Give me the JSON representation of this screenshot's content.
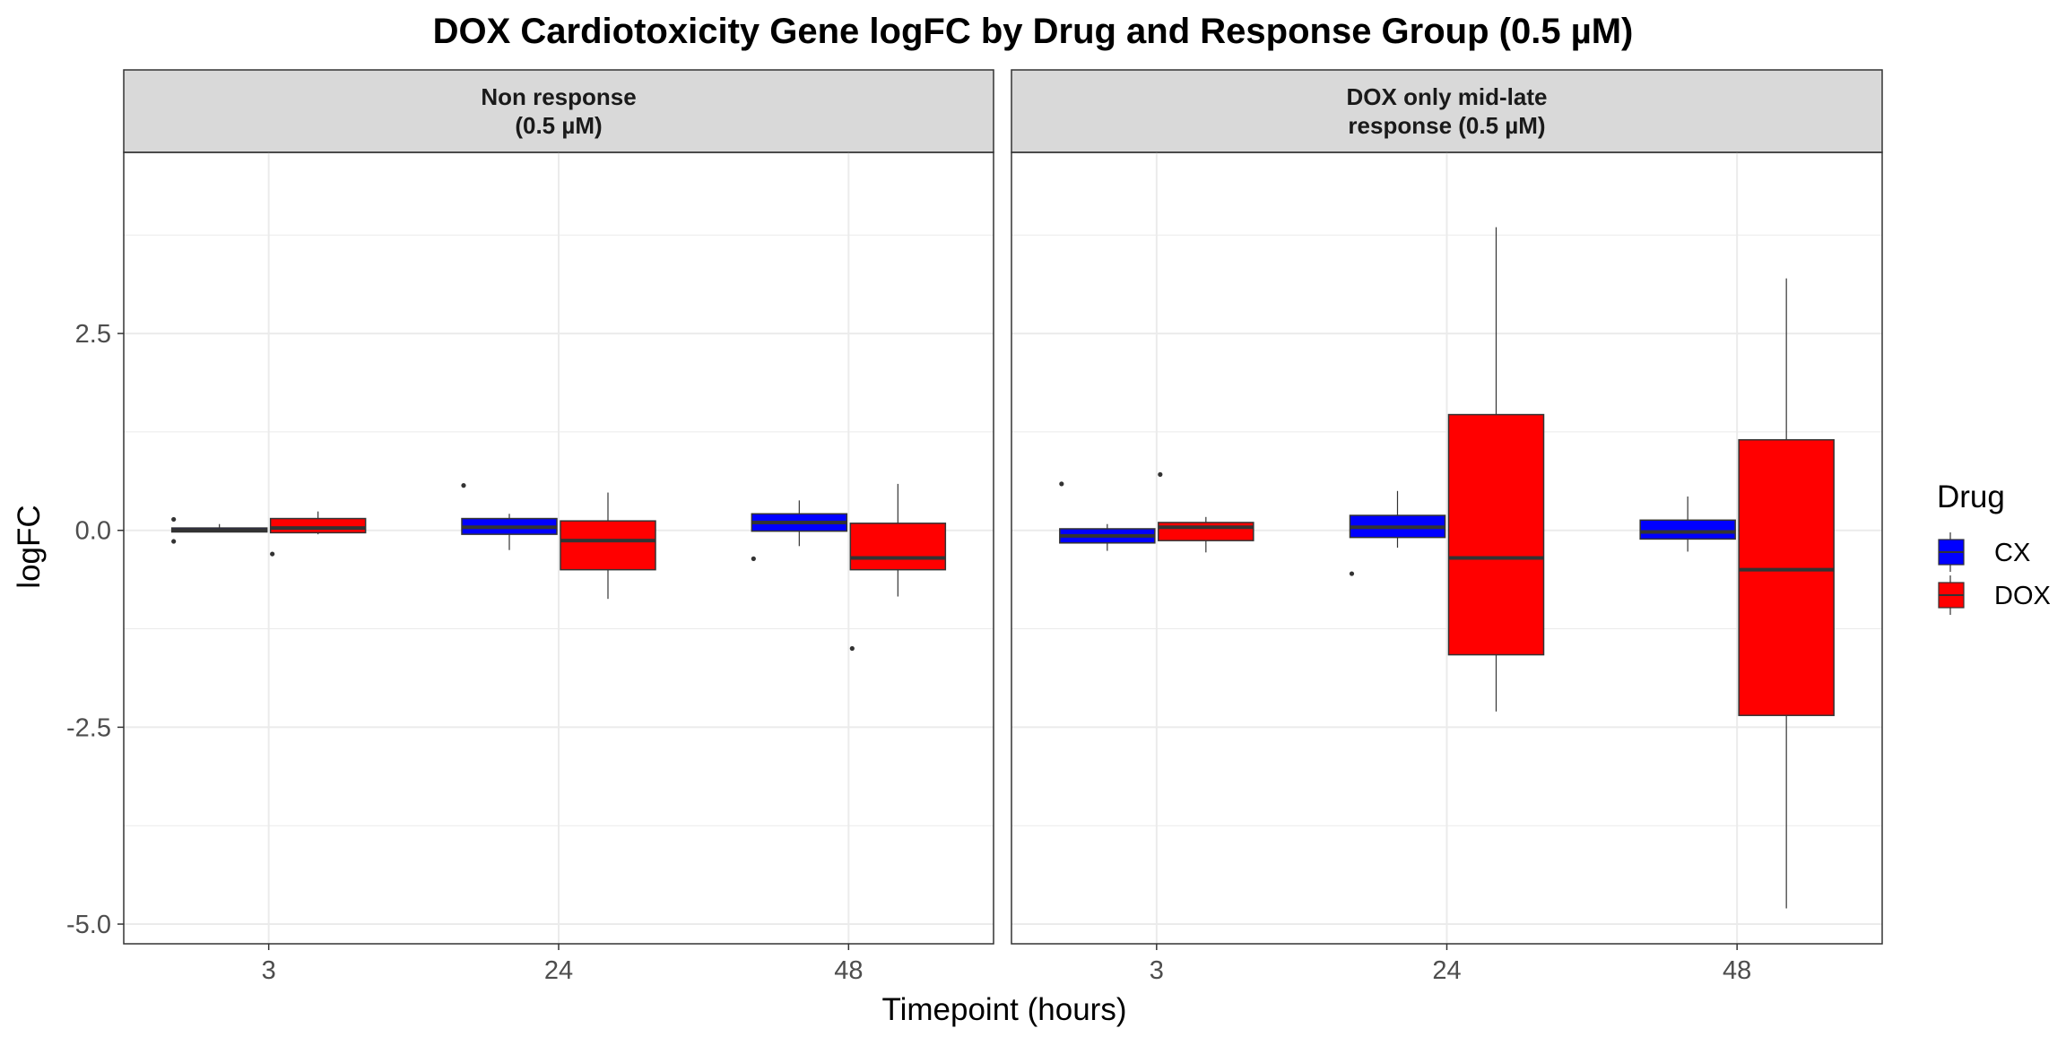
{
  "chart_data": {
    "type": "boxplot",
    "title": "DOX Cardiotoxicity Gene logFC by Drug and Response Group (0.5 µM)",
    "xlabel": "Timepoint (hours)",
    "ylabel": "logFC",
    "ylim": [
      -5.25,
      4.8
    ],
    "yticks": [
      -5.0,
      -2.5,
      0.0,
      2.5
    ],
    "ytick_labels": [
      "-5.0",
      "-2.5",
      "0.0",
      "2.5"
    ],
    "categories": [
      "3",
      "24",
      "48"
    ],
    "grid": true,
    "legend": {
      "title": "Drug",
      "placement": "right",
      "entries": [
        {
          "name": "CX",
          "color": "#0000ff"
        },
        {
          "name": "DOX",
          "color": "#ff0000"
        }
      ]
    },
    "facets": [
      {
        "strip": [
          "Non response",
          "(0.5 µM)"
        ],
        "groups": [
          {
            "x": "3",
            "drug": "CX",
            "lower": -0.02,
            "q1": -0.02,
            "median": 0.0,
            "q3": 0.03,
            "upper": 0.08,
            "outliers": [
              0.14,
              -0.14
            ]
          },
          {
            "x": "3",
            "drug": "DOX",
            "lower": -0.05,
            "q1": -0.03,
            "median": 0.03,
            "q3": 0.15,
            "upper": 0.24,
            "outliers": [
              -0.3
            ]
          },
          {
            "x": "24",
            "drug": "CX",
            "lower": -0.25,
            "q1": -0.05,
            "median": 0.04,
            "q3": 0.15,
            "upper": 0.21,
            "outliers": [
              0.57
            ]
          },
          {
            "x": "24",
            "drug": "DOX",
            "lower": -0.87,
            "q1": -0.5,
            "median": -0.13,
            "q3": 0.12,
            "upper": 0.48,
            "outliers": []
          },
          {
            "x": "48",
            "drug": "CX",
            "lower": -0.2,
            "q1": -0.01,
            "median": 0.1,
            "q3": 0.21,
            "upper": 0.38,
            "outliers": [
              -0.36
            ]
          },
          {
            "x": "48",
            "drug": "DOX",
            "lower": -0.84,
            "q1": -0.5,
            "median": -0.35,
            "q3": 0.09,
            "upper": 0.59,
            "outliers": [
              -1.5
            ]
          }
        ]
      },
      {
        "strip": [
          "DOX only mid-late",
          "response (0.5 µM)"
        ],
        "groups": [
          {
            "x": "3",
            "drug": "CX",
            "lower": -0.26,
            "q1": -0.16,
            "median": -0.07,
            "q3": 0.02,
            "upper": 0.08,
            "outliers": [
              0.59
            ]
          },
          {
            "x": "3",
            "drug": "DOX",
            "lower": -0.28,
            "q1": -0.13,
            "median": 0.04,
            "q3": 0.1,
            "upper": 0.17,
            "outliers": [
              0.71
            ]
          },
          {
            "x": "24",
            "drug": "CX",
            "lower": -0.22,
            "q1": -0.09,
            "median": 0.04,
            "q3": 0.19,
            "upper": 0.5,
            "outliers": [
              -0.55
            ]
          },
          {
            "x": "24",
            "drug": "DOX",
            "lower": -2.3,
            "q1": -1.58,
            "median": -0.35,
            "q3": 1.47,
            "upper": 3.85,
            "outliers": []
          },
          {
            "x": "48",
            "drug": "CX",
            "lower": -0.27,
            "q1": -0.11,
            "median": -0.02,
            "q3": 0.13,
            "upper": 0.43,
            "outliers": []
          },
          {
            "x": "48",
            "drug": "DOX",
            "lower": -4.8,
            "q1": -2.35,
            "median": -0.5,
            "q3": 1.15,
            "upper": 3.2,
            "outliers": []
          }
        ]
      }
    ]
  }
}
